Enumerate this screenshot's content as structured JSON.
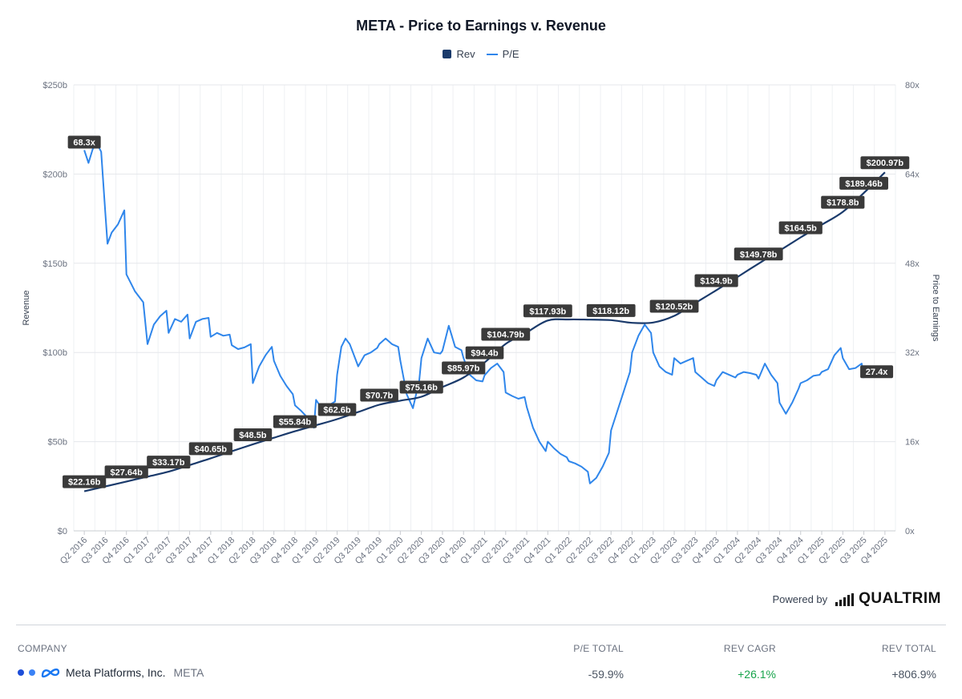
{
  "title": "META - Price to Earnings v. Revenue",
  "legend": [
    {
      "label": "Rev",
      "color": "#1a3a6b"
    },
    {
      "label": "P/E",
      "color": "#2f86eb"
    }
  ],
  "chart_data": {
    "type": "line",
    "y_left": {
      "label": "Revenue",
      "ticks": [
        "$0",
        "$50b",
        "$100b",
        "$150b",
        "$200b",
        "$250b"
      ],
      "range": [
        0,
        250
      ]
    },
    "y_right": {
      "label": "Price to Earnings",
      "ticks": [
        "0x",
        "16x",
        "32x",
        "48x",
        "64x",
        "80x"
      ],
      "range": [
        0,
        80
      ]
    },
    "x_categories": [
      "Q2 2016",
      "Q3 2016",
      "Q4 2016",
      "Q1 2017",
      "Q2 2017",
      "Q3 2017",
      "Q4 2017",
      "Q1 2018",
      "Q2 2018",
      "Q3 2018",
      "Q4 2018",
      "Q1 2019",
      "Q2 2019",
      "Q3 2019",
      "Q4 2019",
      "Q1 2020",
      "Q2 2020",
      "Q3 2020",
      "Q4 2020",
      "Q1 2021",
      "Q2 2021",
      "Q3 2021",
      "Q4 2021",
      "Q1 2022",
      "Q2 2022",
      "Q3 2022",
      "Q4 2022",
      "Q1 2023",
      "Q2 2023",
      "Q3 2023",
      "Q4 2023",
      "Q1 2024",
      "Q2 2024",
      "Q3 2024",
      "Q4 2024",
      "Q1 2025",
      "Q2 2025",
      "Q3 2025",
      "Q4 2025"
    ],
    "series": [
      {
        "name": "Rev",
        "axis": "left",
        "color": "#1a3a6b",
        "points": [
          [
            0,
            22.16
          ],
          [
            1,
            24.9
          ],
          [
            2,
            27.64
          ],
          [
            3,
            30.4
          ],
          [
            4,
            33.17
          ],
          [
            5,
            36.9
          ],
          [
            6,
            40.65
          ],
          [
            7,
            44.6
          ],
          [
            8,
            48.5
          ],
          [
            9,
            52.2
          ],
          [
            10,
            55.84
          ],
          [
            11,
            59.2
          ],
          [
            12,
            62.6
          ],
          [
            13,
            66.6
          ],
          [
            14,
            70.7
          ],
          [
            15,
            73.0
          ],
          [
            16,
            75.16
          ],
          [
            17,
            80.6
          ],
          [
            18,
            85.97
          ],
          [
            19,
            94.4
          ],
          [
            20,
            104.79
          ],
          [
            21,
            111.3
          ],
          [
            22,
            117.93
          ],
          [
            23,
            118.5
          ],
          [
            24,
            118.4
          ],
          [
            25,
            118.12
          ],
          [
            26,
            116.6
          ],
          [
            27,
            116.8
          ],
          [
            28,
            120.52
          ],
          [
            29,
            127.7
          ],
          [
            30,
            134.9
          ],
          [
            31,
            142.3
          ],
          [
            32,
            149.78
          ],
          [
            33,
            157.1
          ],
          [
            34,
            164.5
          ],
          [
            35,
            171.6
          ],
          [
            36,
            178.8
          ],
          [
            37,
            189.46
          ],
          [
            38,
            200.97
          ]
        ],
        "labels": [
          [
            "$22.16b",
            0
          ],
          [
            "$27.64b",
            2
          ],
          [
            "$33.17b",
            4
          ],
          [
            "$40.65b",
            6
          ],
          [
            "$48.5b",
            8
          ],
          [
            "$55.84b",
            10
          ],
          [
            "$62.6b",
            12
          ],
          [
            "$70.7b",
            14
          ],
          [
            "$75.16b",
            16
          ],
          [
            "$85.97b",
            18
          ],
          [
            "$94.4b",
            19
          ],
          [
            "$104.79b",
            20
          ],
          [
            "$117.93b",
            22
          ],
          [
            "$118.12b",
            25
          ],
          [
            "$120.52b",
            28
          ],
          [
            "$134.9b",
            30
          ],
          [
            "$149.78b",
            32
          ],
          [
            "$164.5b",
            34
          ],
          [
            "$178.8b",
            36
          ],
          [
            "$189.46b",
            37
          ],
          [
            "$200.97b",
            38
          ]
        ]
      },
      {
        "name": "P/E",
        "axis": "right",
        "color": "#2f86eb",
        "points": [
          [
            0,
            68.3
          ],
          [
            0.2,
            66
          ],
          [
            0.4,
            68.5
          ],
          [
            0.6,
            69.5
          ],
          [
            0.8,
            68
          ],
          [
            1,
            57
          ],
          [
            1.1,
            51.5
          ],
          [
            1.3,
            53.5
          ],
          [
            1.6,
            55
          ],
          [
            1.9,
            57.5
          ],
          [
            2,
            46
          ],
          [
            2.2,
            44.5
          ],
          [
            2.4,
            43
          ],
          [
            2.6,
            42
          ],
          [
            2.8,
            41
          ],
          [
            3,
            33.5
          ],
          [
            3.3,
            37
          ],
          [
            3.6,
            38.5
          ],
          [
            3.9,
            39.5
          ],
          [
            4,
            35.5
          ],
          [
            4.3,
            38
          ],
          [
            4.6,
            37.5
          ],
          [
            4.9,
            38.8
          ],
          [
            5,
            34.5
          ],
          [
            5.3,
            37.5
          ],
          [
            5.6,
            38
          ],
          [
            5.9,
            38.2
          ],
          [
            6,
            34.8
          ],
          [
            6.3,
            35.5
          ],
          [
            6.6,
            35
          ],
          [
            6.9,
            35.2
          ],
          [
            7,
            33.3
          ],
          [
            7.3,
            32.6
          ],
          [
            7.6,
            32.9
          ],
          [
            7.9,
            33.5
          ],
          [
            8,
            26.5
          ],
          [
            8.3,
            29.5
          ],
          [
            8.6,
            31.5
          ],
          [
            8.9,
            33
          ],
          [
            9,
            30.5
          ],
          [
            9.3,
            27.8
          ],
          [
            9.6,
            26
          ],
          [
            9.9,
            24.5
          ],
          [
            10,
            22.5
          ],
          [
            10.3,
            21.5
          ],
          [
            10.6,
            20.3
          ],
          [
            10.9,
            18.5
          ],
          [
            11,
            23.5
          ],
          [
            11.3,
            21.8
          ],
          [
            11.6,
            22.5
          ],
          [
            11.9,
            23.2
          ],
          [
            12,
            28
          ],
          [
            12.2,
            33
          ],
          [
            12.4,
            34.5
          ],
          [
            12.6,
            33.5
          ],
          [
            12.9,
            30.5
          ],
          [
            13,
            29.5
          ],
          [
            13.3,
            31.5
          ],
          [
            13.6,
            32
          ],
          [
            13.9,
            32.8
          ],
          [
            14,
            33.5
          ],
          [
            14.3,
            34.5
          ],
          [
            14.6,
            33.5
          ],
          [
            14.9,
            33
          ],
          [
            15,
            30.5
          ],
          [
            15.3,
            24.5
          ],
          [
            15.6,
            22
          ],
          [
            15.9,
            27
          ],
          [
            16,
            31
          ],
          [
            16.3,
            34.5
          ],
          [
            16.6,
            32
          ],
          [
            16.9,
            31.8
          ],
          [
            17,
            32.3
          ],
          [
            17.3,
            36.8
          ],
          [
            17.6,
            33
          ],
          [
            17.9,
            32.4
          ],
          [
            18,
            31
          ],
          [
            18.3,
            28
          ],
          [
            18.6,
            27
          ],
          [
            18.9,
            26.8
          ],
          [
            19,
            27.9
          ],
          [
            19.3,
            29.2
          ],
          [
            19.6,
            30
          ],
          [
            19.9,
            28.5
          ],
          [
            20,
            24.8
          ],
          [
            20.3,
            24.2
          ],
          [
            20.6,
            23.7
          ],
          [
            20.9,
            24
          ],
          [
            21,
            22.2
          ],
          [
            21.3,
            18.5
          ],
          [
            21.6,
            16
          ],
          [
            21.9,
            14.3
          ],
          [
            22,
            16
          ],
          [
            22.3,
            14.8
          ],
          [
            22.6,
            13.8
          ],
          [
            22.9,
            13.2
          ],
          [
            23,
            12.5
          ],
          [
            23.3,
            12.1
          ],
          [
            23.6,
            11.5
          ],
          [
            23.9,
            10.6
          ],
          [
            24,
            8.5
          ],
          [
            24.3,
            9.5
          ],
          [
            24.6,
            11.5
          ],
          [
            24.9,
            14
          ],
          [
            25,
            18
          ],
          [
            25.3,
            21.5
          ],
          [
            25.6,
            25
          ],
          [
            25.9,
            28.5
          ],
          [
            26,
            32
          ],
          [
            26.3,
            35
          ],
          [
            26.6,
            37
          ],
          [
            26.9,
            35.5
          ],
          [
            27,
            32
          ],
          [
            27.3,
            29.5
          ],
          [
            27.6,
            28.5
          ],
          [
            27.9,
            28
          ],
          [
            28,
            31
          ],
          [
            28.3,
            30
          ],
          [
            28.6,
            30.5
          ],
          [
            28.9,
            31
          ],
          [
            29,
            28.5
          ],
          [
            29.3,
            27.5
          ],
          [
            29.6,
            26.5
          ],
          [
            29.9,
            26
          ],
          [
            30,
            27
          ],
          [
            30.3,
            28.5
          ],
          [
            30.6,
            28
          ],
          [
            30.9,
            27.5
          ],
          [
            31,
            28
          ],
          [
            31.3,
            28.5
          ],
          [
            31.6,
            28.3
          ],
          [
            31.9,
            28
          ],
          [
            32,
            27.3
          ],
          [
            32.3,
            30
          ],
          [
            32.6,
            28
          ],
          [
            32.9,
            26.5
          ],
          [
            33,
            23
          ],
          [
            33.3,
            21
          ],
          [
            33.6,
            23
          ],
          [
            33.9,
            25.5
          ],
          [
            34,
            26.5
          ],
          [
            34.3,
            27
          ],
          [
            34.6,
            27.8
          ],
          [
            34.9,
            28
          ],
          [
            35,
            28.5
          ],
          [
            35.3,
            29
          ],
          [
            35.6,
            31.5
          ],
          [
            35.9,
            32.8
          ],
          [
            36,
            31
          ],
          [
            36.3,
            29
          ],
          [
            36.6,
            29.2
          ],
          [
            36.9,
            30
          ],
          [
            37,
            27.4
          ]
        ],
        "start_label": "68.3x",
        "end_label": "27.4x"
      }
    ]
  },
  "powered": {
    "text": "Powered by",
    "brand": "QUALTRIM"
  },
  "table": {
    "headers": {
      "company": "COMPANY",
      "pe_total": "P/E TOTAL",
      "rev_cagr": "REV CAGR",
      "rev_total": "REV TOTAL"
    },
    "row": {
      "name": "Meta Platforms, Inc.",
      "ticker": "META",
      "pe_total": "-59.9%",
      "rev_cagr": "+26.1%",
      "rev_total": "+806.9%",
      "pe_color": "#4b5563",
      "cagr_color": "#16a34a",
      "total_color": "#4b5563"
    }
  }
}
